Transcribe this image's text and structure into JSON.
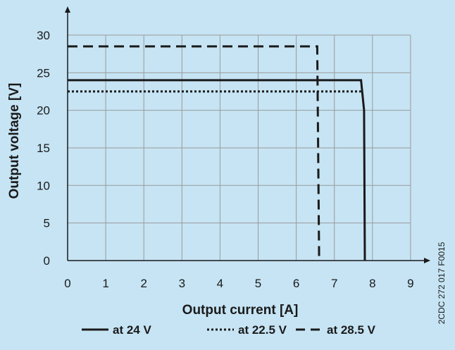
{
  "chart_data": {
    "type": "line",
    "xlabel": "Output current [A]",
    "ylabel": "Output voltage [V]",
    "xlim": [
      0,
      9
    ],
    "ylim": [
      0,
      30
    ],
    "x_ticks": [
      "0",
      "1",
      "2",
      "3",
      "4",
      "5",
      "6",
      "7",
      "8",
      "9"
    ],
    "y_ticks": [
      "0",
      "5",
      "10",
      "15",
      "20",
      "25",
      "30"
    ],
    "grid": true,
    "legend_position": "bottom-center",
    "doc_code": "2CDC 272 017 F0015",
    "series": [
      {
        "name": "at 24 V",
        "style": "solid",
        "points": [
          [
            0,
            24
          ],
          [
            7.7,
            24
          ],
          [
            7.78,
            20
          ],
          [
            7.8,
            0
          ]
        ]
      },
      {
        "name": "at 22.5 V",
        "style": "dotted",
        "points": [
          [
            0,
            22.5
          ],
          [
            7.7,
            22.5
          ]
        ]
      },
      {
        "name": "at 28.5 V",
        "style": "dashed",
        "points": [
          [
            0,
            28.5
          ],
          [
            6.55,
            28.5
          ],
          [
            6.6,
            0
          ]
        ]
      }
    ],
    "colors": {
      "background": "#c6e4f4",
      "grid": "#9a9a9a",
      "axis": "#1a1a1a",
      "series": "#1a1a1a"
    }
  }
}
